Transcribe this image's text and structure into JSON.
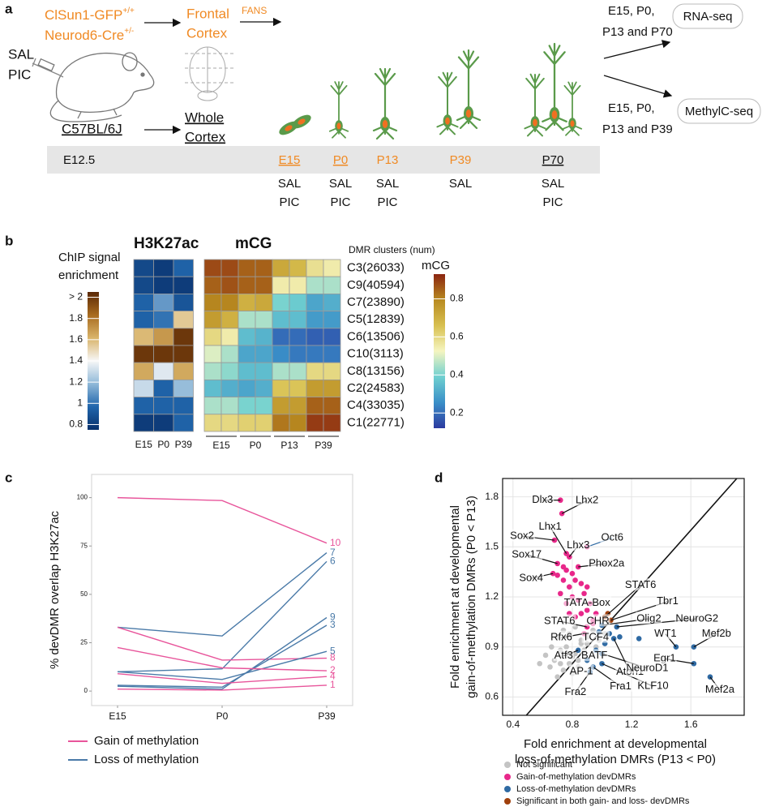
{
  "panels": [
    "a",
    "b",
    "c",
    "d"
  ],
  "panel_a": {
    "mouse_lines": [
      {
        "text": "ClSun1-GFP",
        "sup": "+/+"
      },
      {
        "text": "Neurod6-Cre",
        "sup": "+/-"
      }
    ],
    "treatment": [
      "SAL",
      "PIC"
    ],
    "control_strain": "C57BL/6J",
    "frontal": [
      "Frontal",
      "Cortex"
    ],
    "fans": "FANS",
    "whole": [
      "Whole",
      "Cortex"
    ],
    "rna": {
      "stages": [
        "E15, P0,",
        "P13 and P70"
      ],
      "assay": "RNA-seq"
    },
    "methyl": {
      "stages": [
        "E15, P0,",
        "P13 and P39"
      ],
      "assay": "MethylC-seq"
    },
    "timeline": {
      "start": "E12.5",
      "stages": [
        {
          "name": "E15",
          "color": "#f08a24",
          "underline": true,
          "treatments": [
            "SAL",
            "PIC"
          ]
        },
        {
          "name": "P0",
          "color": "#f08a24",
          "underline": true,
          "treatments": [
            "SAL",
            "PIC"
          ]
        },
        {
          "name": "P13",
          "color": "#f08a24",
          "underline": false,
          "treatments": [
            "SAL",
            "PIC"
          ]
        },
        {
          "name": "P39",
          "color": "#f08a24",
          "underline": false,
          "treatments": [
            "SAL"
          ]
        },
        {
          "name": "P70",
          "color": "#111111",
          "underline": true,
          "treatments": [
            "SAL",
            "PIC"
          ]
        }
      ]
    }
  },
  "chart_data": [
    {
      "type": "heatmap",
      "title": "H3K27ac",
      "colorbar_title": [
        "ChIP signal",
        "enrichment"
      ],
      "columns": [
        "E15",
        "P0",
        "P39"
      ],
      "values": [
        [
          0.85,
          0.8,
          0.95
        ],
        [
          0.85,
          0.8,
          0.8
        ],
        [
          0.95,
          1.1,
          0.9
        ],
        [
          0.95,
          1.0,
          1.55
        ],
        [
          1.6,
          1.7,
          2.0
        ],
        [
          2.0,
          2.0,
          2.0
        ],
        [
          1.65,
          1.35,
          1.65
        ],
        [
          1.3,
          0.95,
          1.2
        ],
        [
          0.95,
          0.95,
          0.95
        ],
        [
          0.8,
          0.8,
          0.95
        ]
      ],
      "colorscale": [
        "#08306b",
        "#2166ac",
        "#8fb8d8",
        "#f7f7f7",
        "#d9b46a",
        "#a86b1f",
        "#5a2805"
      ],
      "clim": [
        0.75,
        2.05
      ],
      "cticks": [
        {
          "value": 2,
          "label": "> 2"
        },
        1.8,
        1.6,
        1.4,
        1.2,
        1,
        0.8
      ]
    },
    {
      "type": "heatmap",
      "title": "mCG",
      "rows_title": "DMR clusters (num)",
      "rows": [
        "C3(26033)",
        "C9(40594)",
        "C7(23890)",
        "C5(12839)",
        "C6(13506)",
        "C10(3113)",
        "C8(13156)",
        "C2(24583)",
        "C4(33035)",
        "C1(22771)"
      ],
      "column_groups": [
        "E15",
        "P0",
        "P13",
        "P39"
      ],
      "values": [
        [
          0.88,
          0.88,
          0.85,
          0.85,
          0.72,
          0.68,
          0.58,
          0.55
        ],
        [
          0.85,
          0.87,
          0.85,
          0.85,
          0.55,
          0.55,
          0.45,
          0.45
        ],
        [
          0.8,
          0.8,
          0.7,
          0.72,
          0.4,
          0.38,
          0.3,
          0.32
        ],
        [
          0.75,
          0.7,
          0.45,
          0.45,
          0.35,
          0.35,
          0.28,
          0.28
        ],
        [
          0.6,
          0.55,
          0.35,
          0.33,
          0.2,
          0.2,
          0.18,
          0.18
        ],
        [
          0.5,
          0.45,
          0.3,
          0.3,
          0.25,
          0.22,
          0.22,
          0.22
        ],
        [
          0.45,
          0.42,
          0.35,
          0.35,
          0.45,
          0.45,
          0.6,
          0.6
        ],
        [
          0.35,
          0.32,
          0.3,
          0.32,
          0.65,
          0.65,
          0.75,
          0.75
        ],
        [
          0.45,
          0.45,
          0.4,
          0.4,
          0.75,
          0.75,
          0.85,
          0.85
        ],
        [
          0.6,
          0.6,
          0.62,
          0.62,
          0.82,
          0.8,
          0.9,
          0.9
        ]
      ],
      "colorbar_title": "mCG",
      "colorscale": [
        "#2c3aa0",
        "#3a8fc8",
        "#6fd0d0",
        "#f5f5c0",
        "#d8c050",
        "#b88a20",
        "#8b2510"
      ],
      "clim": [
        0.12,
        0.93
      ],
      "cticks": [
        0.8,
        0.6,
        0.4,
        0.2
      ]
    },
    {
      "type": "line",
      "ylabel": "% devDMR overlap H3K27ac",
      "categories": [
        "E15",
        "P0",
        "P39"
      ],
      "ylim": [
        -7.5,
        112
      ],
      "yticks": [
        0,
        25,
        50,
        75,
        100
      ],
      "legend": [
        {
          "name": "Gain of methylation",
          "color": "#e8559b"
        },
        {
          "name": "Loss of methylation",
          "color": "#4a7aa8"
        }
      ],
      "series": [
        {
          "name": "10",
          "color": "#e8559b",
          "values": [
            100,
            98.5,
            76.5
          ]
        },
        {
          "name": "7",
          "color": "#4a7aa8",
          "values": [
            33,
            28.5,
            71.5
          ]
        },
        {
          "name": "6",
          "color": "#4a7aa8",
          "values": [
            10,
            11.5,
            67
          ]
        },
        {
          "name": "8",
          "color": "#e8559b",
          "values": [
            33,
            16,
            17
          ]
        },
        {
          "name": "9",
          "color": "#4a7aa8",
          "values": [
            2.5,
            1,
            38
          ]
        },
        {
          "name": "3",
          "color": "#4a7aa8",
          "values": [
            3,
            2,
            34
          ]
        },
        {
          "name": "5",
          "color": "#4a7aa8",
          "values": [
            10,
            6,
            20.5
          ]
        },
        {
          "name": "2",
          "color": "#e8559b",
          "values": [
            22.5,
            12,
            10.5
          ]
        },
        {
          "name": "4",
          "color": "#e8559b",
          "values": [
            9,
            4,
            7.5
          ]
        },
        {
          "name": "1",
          "color": "#e8559b",
          "values": [
            1,
            0.5,
            3
          ]
        }
      ]
    },
    {
      "type": "scatter",
      "xlabel": [
        "Fold enrichment at developmental",
        "loss-of-methylation DMRs (P13 < P0)"
      ],
      "ylabel": [
        "Fold enrichment at developmental",
        "gain-of-methylation DMRs (P0 < P13)"
      ],
      "xlim": [
        0.33,
        1.96
      ],
      "ylim": [
        0.49,
        1.91
      ],
      "xticks": [
        0.4,
        0.8,
        1.2,
        1.6
      ],
      "yticks": [
        0.6,
        0.9,
        1.2,
        1.5,
        1.8
      ],
      "grid": true,
      "diagonal": true,
      "series": [
        {
          "name": "Not significant",
          "color": "#c4c4c4",
          "x": [
            0.62,
            0.65,
            0.68,
            0.7,
            0.72,
            0.74,
            0.76,
            0.78,
            0.8,
            0.82,
            0.84,
            0.86,
            0.7,
            0.74,
            0.78,
            0.82,
            0.86,
            0.9,
            0.94,
            0.98,
            1.02,
            0.66,
            0.72,
            0.8,
            0.88,
            0.96,
            0.76,
            0.84,
            0.9,
            0.58
          ],
          "y": [
            0.85,
            0.78,
            0.82,
            0.72,
            0.88,
            0.76,
            0.9,
            0.8,
            0.74,
            0.86,
            0.78,
            0.94,
            0.96,
            1.0,
            0.98,
            1.02,
            0.92,
            0.96,
            1.0,
            0.94,
            0.98,
            0.9,
            0.8,
            0.84,
            0.88,
            0.9,
            0.86,
            0.82,
            0.92,
            0.8
          ]
        },
        {
          "name": "Gain-of-methylation devDMRs",
          "color": "#e8288a",
          "x": [
            0.72,
            0.73,
            0.76,
            0.68,
            0.78,
            0.7,
            0.67,
            0.84,
            0.9,
            0.9,
            0.94,
            0.88,
            0.9,
            0.7,
            0.76,
            0.8,
            0.82,
            0.74,
            0.86,
            0.78,
            0.88,
            0.72,
            0.8,
            0.84,
            0.92,
            0.76,
            0.86,
            0.96,
            0.82,
            0.94,
            0.78,
            0.9,
            0.74
          ],
          "y": [
            1.78,
            1.7,
            1.46,
            1.54,
            1.44,
            1.4,
            1.34,
            1.38,
            1.12,
            1.02,
            1.04,
            0.98,
            1.5,
            1.33,
            1.36,
            1.34,
            1.3,
            1.3,
            1.28,
            1.26,
            1.22,
            1.22,
            1.2,
            1.18,
            1.16,
            1.16,
            1.1,
            1.1,
            1.08,
            1.06,
            1.1,
            1.26,
            1.38
          ],
          "labels": [
            "Dlx3",
            "Lhx2",
            "Lhx1",
            "Sox2",
            "Lhx3",
            "Sox17",
            "Sox4",
            "Phox2a",
            "TATA-Box",
            "STAT6",
            "CHR",
            "Rfx6",
            "Oct6",
            null,
            null,
            null,
            null,
            null,
            null,
            null,
            null,
            null,
            null,
            null,
            null,
            null,
            null,
            null,
            null,
            null,
            null,
            null,
            null
          ]
        },
        {
          "name": "Loss-of-methylation devDMRs",
          "color": "#2f6aa3",
          "x": [
            1.0,
            1.1,
            0.98,
            1.5,
            1.62,
            1.62,
            1.73,
            0.84,
            0.96,
            1.08,
            0.9,
            1.0,
            0.94,
            1.0,
            0.92,
            1.05,
            1.12,
            1.25,
            1.02
          ],
          "y": [
            1.03,
            1.02,
            0.99,
            0.9,
            0.9,
            0.8,
            0.72,
            0.88,
            0.88,
            0.95,
            0.82,
            0.86,
            0.78,
            0.8,
            0.75,
            0.98,
            0.96,
            0.95,
            0.92
          ],
          "labels": [
            "Olig2",
            "NeuroG2",
            "TCF4",
            "WT1",
            "Mef2b",
            "Egr1",
            "Mef2a",
            "Atf3",
            "BATF",
            "Atoh1",
            "AP-1",
            "NeuroD1",
            "Fra1",
            "KLF10",
            "Fra2",
            null,
            null,
            null,
            null
          ]
        },
        {
          "name": "Significant in both gain- and loss- devDMRs",
          "color": "#a0400c",
          "x": [
            1.02,
            1.06,
            1.04
          ],
          "y": [
            1.08,
            1.06,
            1.1
          ],
          "labels": [
            "STAT6",
            "Tbr1",
            null
          ]
        }
      ]
    }
  ]
}
